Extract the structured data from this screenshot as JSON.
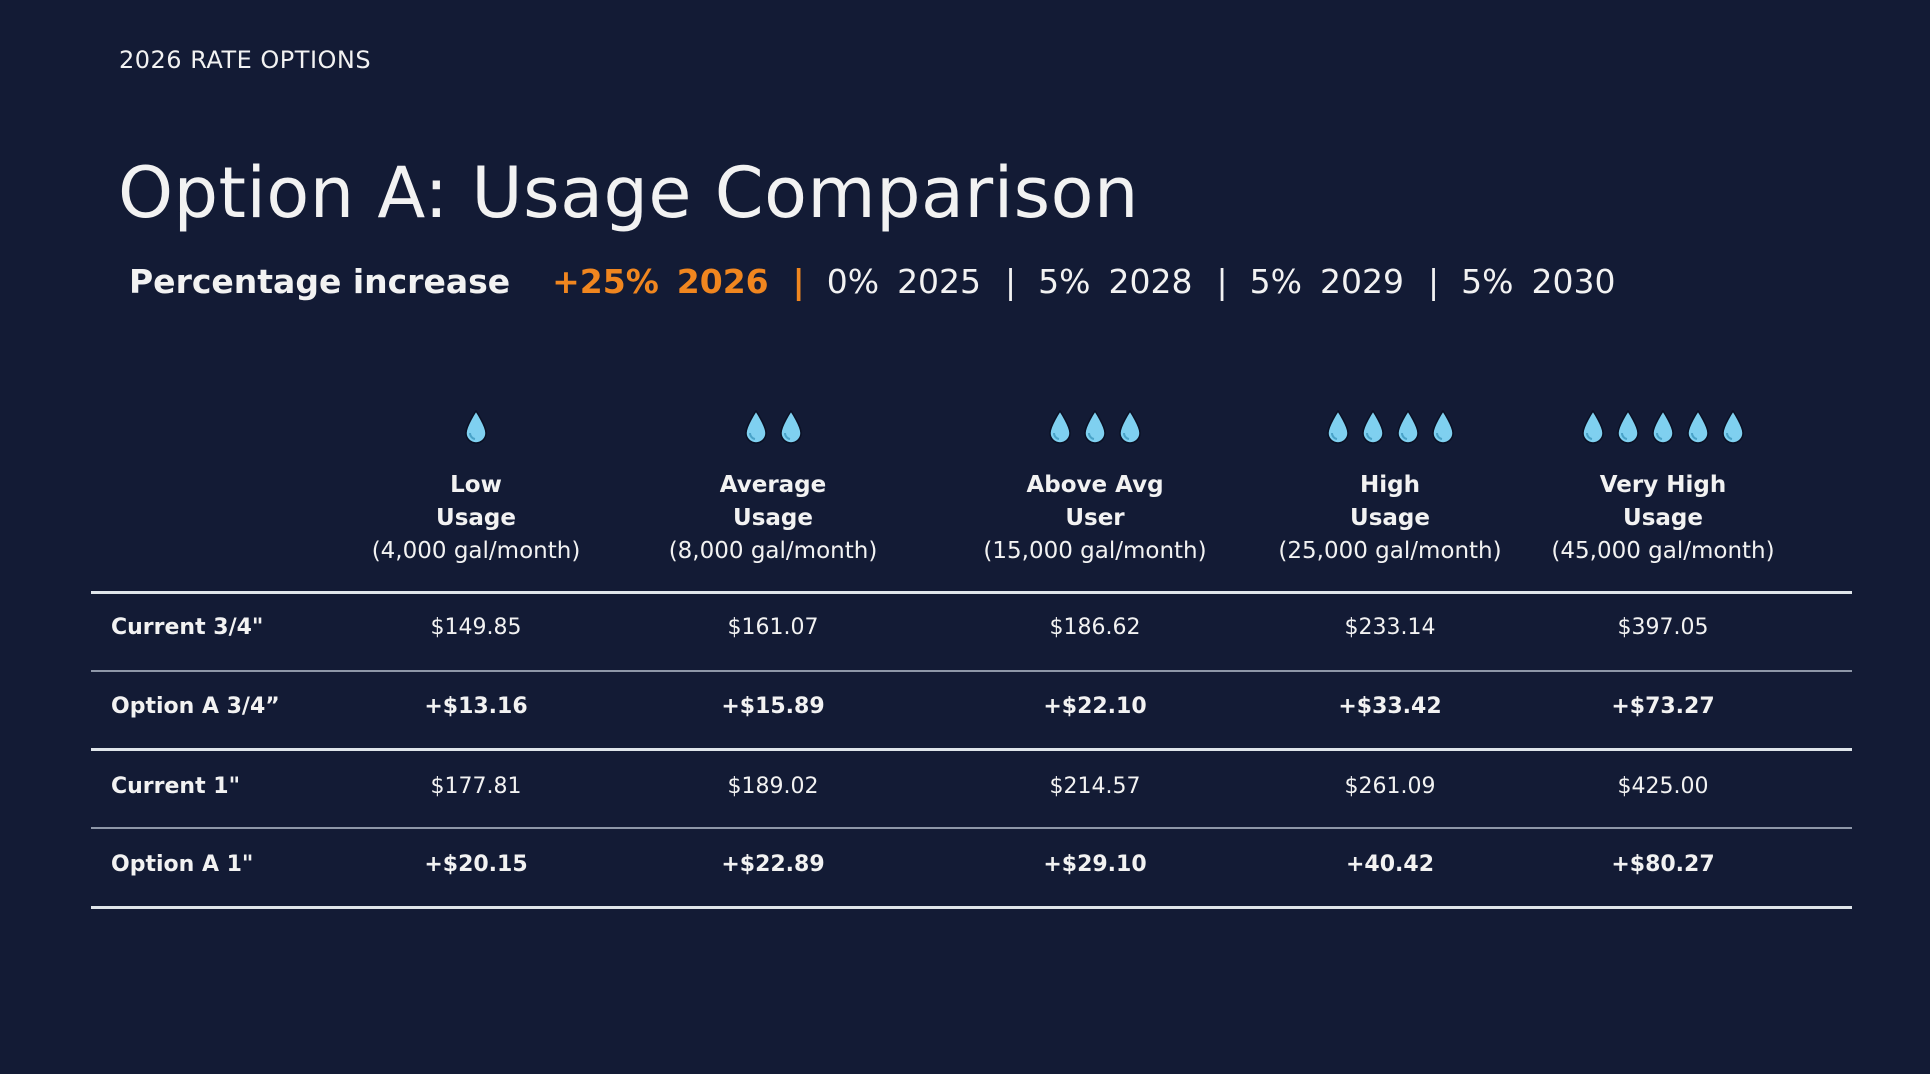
{
  "eyebrow": "2026 RATE OPTIONS",
  "title": "Option A: Usage Comparison",
  "subtitle": {
    "label": "Percentage increase",
    "highlight_pct": "+25%",
    "highlight_year": "2026",
    "sep": "|",
    "items": [
      {
        "pct": "0%",
        "year": "2025"
      },
      {
        "pct": "5%",
        "year": "2028"
      },
      {
        "pct": "5%",
        "year": "2029"
      },
      {
        "pct": "5%",
        "year": "2030"
      }
    ]
  },
  "colors": {
    "background": "#131b35",
    "accent": "#f0861f",
    "drop": "#7fd0f0"
  },
  "columns": [
    {
      "line1": "Low",
      "line2": "Usage",
      "line3": "(4,000 gal/month)",
      "drops": 1
    },
    {
      "line1": "Average",
      "line2": "Usage",
      "line3": "(8,000 gal/month)",
      "drops": 2
    },
    {
      "line1": "Above Avg",
      "line2": "User",
      "line3": "(15,000 gal/month)",
      "drops": 3
    },
    {
      "line1": "High",
      "line2": "Usage",
      "line3": "(25,000 gal/month)",
      "drops": 4
    },
    {
      "line1": "Very High",
      "line2": "Usage",
      "line3": "(45,000 gal/month)",
      "drops": 5
    }
  ],
  "rows": [
    {
      "label": "Current 3/4\"",
      "values": [
        "$149.85",
        "$161.07",
        "$186.62",
        "$233.14",
        "$397.05"
      ]
    },
    {
      "label": "Option A 3/4”",
      "values": [
        "+$13.16",
        "+$15.89",
        "+$22.10",
        "+$33.42",
        "+$73.27"
      ]
    },
    {
      "label": "Current 1\"",
      "values": [
        "$177.81",
        "$189.02",
        "$214.57",
        "$261.09",
        "$425.00"
      ]
    },
    {
      "label": "Option A 1\"",
      "values": [
        "+$20.15",
        "+$22.89",
        "+$29.10",
        "+40.42",
        "+$80.27"
      ]
    }
  ]
}
